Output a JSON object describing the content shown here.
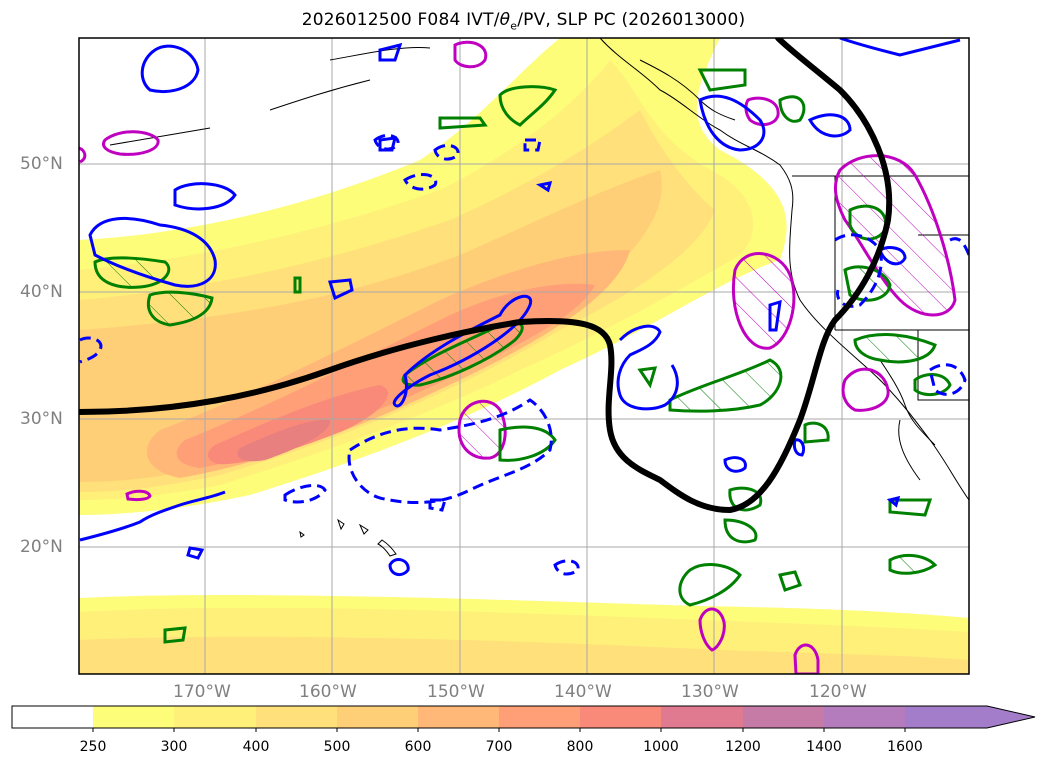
{
  "title": "2026012500 F084 IVT/θe/PV, SLP PC (2026013000)",
  "title_parts": {
    "pre": "2026012500 F084 IVT/",
    "theta": "θ",
    "sub": "e",
    "post": "/PV, SLP PC (2026013000)"
  },
  "map": {
    "lat_labels": [
      "50°N",
      "40°N",
      "30°N",
      "20°N"
    ],
    "lon_labels": [
      "170°W",
      "160°W",
      "150°W",
      "140°W",
      "130°W",
      "120°W"
    ],
    "contour_colors": {
      "slp_pc": "#000000",
      "theta_e": "#0000ff",
      "pv_green": "#008000",
      "pv_magenta": "#c000c0"
    }
  },
  "colorbar": {
    "levels": [
      "250",
      "300",
      "400",
      "500",
      "600",
      "700",
      "800",
      "1000",
      "1200",
      "1400",
      "1600"
    ],
    "colors": [
      "#ffffff",
      "#fdfd7a",
      "#fff07a",
      "#ffe07a",
      "#ffcf78",
      "#ffb878",
      "#ff9f78",
      "#f98a7a",
      "#e07a90",
      "#c67aa6",
      "#b47cbc",
      "#a37dca"
    ],
    "extend": "max"
  }
}
